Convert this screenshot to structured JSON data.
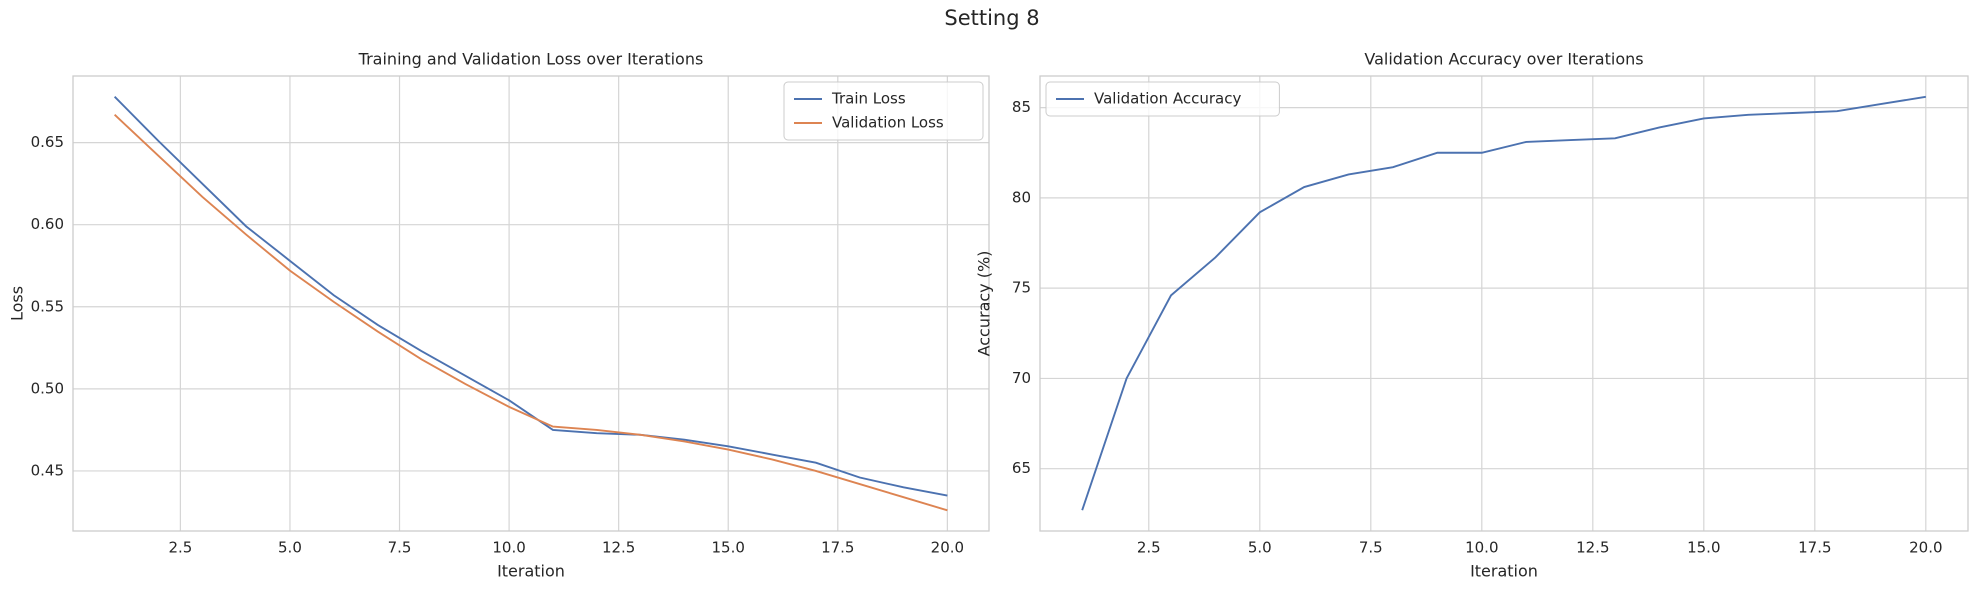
{
  "title": "Setting 8",
  "chart_data": [
    {
      "type": "line",
      "title": "Training and Validation Loss over Iterations",
      "xlabel": "Iteration",
      "ylabel": "Loss",
      "x": [
        1,
        2,
        3,
        4,
        5,
        6,
        7,
        8,
        9,
        10,
        11,
        12,
        13,
        14,
        15,
        16,
        17,
        18,
        19,
        20
      ],
      "series": [
        {
          "name": "Train Loss",
          "color": "#4c72b0",
          "values": [
            0.678,
            0.651,
            0.625,
            0.599,
            0.578,
            0.557,
            0.539,
            0.523,
            0.508,
            0.493,
            0.475,
            0.473,
            0.472,
            0.469,
            0.465,
            0.46,
            0.455,
            0.446,
            0.44,
            0.435
          ]
        },
        {
          "name": "Validation Loss",
          "color": "#dd8452",
          "values": [
            0.667,
            0.642,
            0.617,
            0.594,
            0.572,
            0.553,
            0.535,
            0.518,
            0.503,
            0.489,
            0.477,
            0.475,
            0.472,
            0.468,
            0.463,
            0.457,
            0.45,
            0.442,
            0.434,
            0.426
          ]
        }
      ],
      "xlim": [
        0.05,
        20.95
      ],
      "ylim": [
        0.4134,
        0.6906
      ],
      "xticks": [
        2.5,
        {
          "value": 5,
          "label": "5.0"
        },
        7.5,
        {
          "value": 10,
          "label": "10.0"
        },
        12.5,
        {
          "value": 15,
          "label": "15.0"
        },
        17.5,
        {
          "value": 20,
          "label": "20.0"
        }
      ],
      "yticks": [
        0.45,
        {
          "value": 0.5,
          "label": "0.50"
        },
        0.55,
        {
          "value": 0.6,
          "label": "0.60"
        },
        0.65
      ],
      "grid": true,
      "legend": "upper right"
    },
    {
      "type": "line",
      "title": "Validation Accuracy over Iterations",
      "xlabel": "Iteration",
      "ylabel": "Accuracy (%)",
      "x": [
        1,
        2,
        3,
        4,
        5,
        6,
        7,
        8,
        9,
        10,
        11,
        12,
        13,
        14,
        15,
        16,
        17,
        18,
        19,
        20
      ],
      "series": [
        {
          "name": "Validation Accuracy",
          "color": "#4c72b0",
          "values": [
            62.7,
            70.0,
            74.6,
            76.7,
            79.2,
            80.6,
            81.3,
            81.7,
            82.5,
            82.5,
            83.1,
            83.2,
            83.3,
            83.9,
            84.4,
            84.6,
            84.7,
            84.8,
            85.2,
            85.6
          ]
        }
      ],
      "xlim": [
        0.05,
        20.95
      ],
      "ylim": [
        61.55,
        86.75
      ],
      "xticks": [
        2.5,
        {
          "value": 5,
          "label": "5.0"
        },
        7.5,
        {
          "value": 10,
          "label": "10.0"
        },
        12.5,
        {
          "value": 15,
          "label": "15.0"
        },
        17.5,
        {
          "value": 20,
          "label": "20.0"
        }
      ],
      "yticks": [
        65,
        70,
        75,
        80,
        85
      ],
      "grid": true,
      "legend": "upper left"
    }
  ]
}
